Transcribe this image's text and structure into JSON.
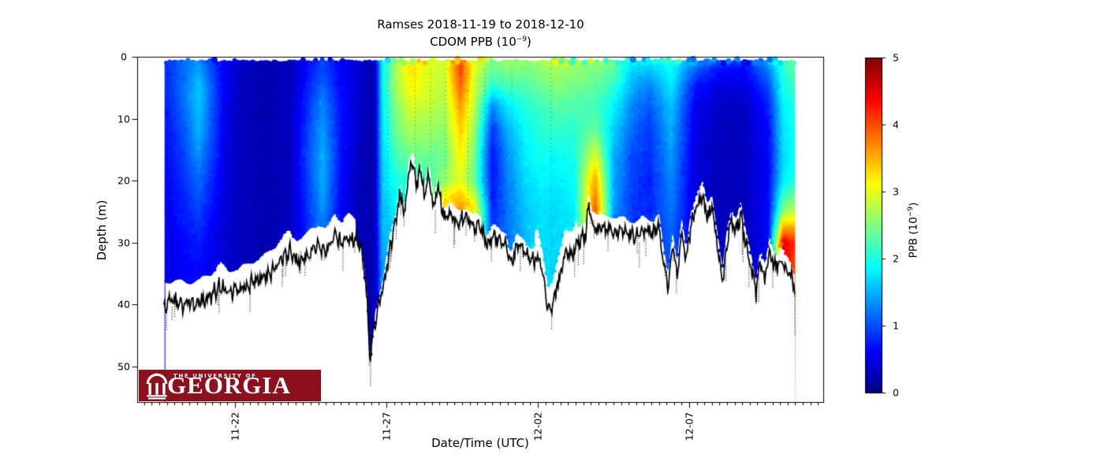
{
  "title": {
    "line1": "Ramses 2018-11-19 to 2018-12-10",
    "line2_prefix": "CDOM PPB (10",
    "line2_exponent": "−9",
    "line2_suffix": ")"
  },
  "axes": {
    "xlabel": "Date/Time (UTC)",
    "ylabel": "Depth (m)",
    "x_tick_labels": [
      {
        "day": 3,
        "label": "11-22"
      },
      {
        "day": 8,
        "label": "11-27"
      },
      {
        "day": 13,
        "label": "12-02"
      },
      {
        "day": 18,
        "label": "12-07"
      }
    ],
    "y_tick_labels": [
      {
        "m": 0,
        "label": "0"
      },
      {
        "m": 10,
        "label": "10"
      },
      {
        "m": 20,
        "label": "20"
      },
      {
        "m": 30,
        "label": "30"
      },
      {
        "m": 40,
        "label": "40"
      },
      {
        "m": 50,
        "label": "50"
      }
    ],
    "x_minor_tick_interval_days": 0.25
  },
  "colorbar": {
    "colormap": "jet",
    "vmin": 0,
    "vmax": 5,
    "ticks": [
      {
        "value": 0,
        "label": "0"
      },
      {
        "value": 1,
        "label": "1"
      },
      {
        "value": 2,
        "label": "2"
      },
      {
        "value": 3,
        "label": "3"
      },
      {
        "value": 4,
        "label": "4"
      },
      {
        "value": 5,
        "label": "5"
      }
    ],
    "label_prefix": "PPB (10",
    "label_exponent": "−9",
    "label_suffix": ")"
  },
  "logo": {
    "line1": "THE UNIVERSITY OF",
    "line2": "GEORGIA",
    "background": "#8C101E",
    "text_color": "#FFFFFF"
  },
  "chart_data": {
    "type": "heatmap",
    "title": "Ramses 2018-11-19 to 2018-12-10 — CDOM PPB (10⁻⁹)",
    "x_unit": "days since 2018-11-19 00:00 UTC",
    "y_unit": "depth (m)",
    "value_unit": "CDOM PPB (10⁻⁹)",
    "vmin": 0,
    "vmax": 5,
    "xlim_labels": [
      "11-19",
      "12-11"
    ],
    "ylim": [
      0,
      55.9
    ],
    "data_start_day": 0.7,
    "data_end_day": 21.5,
    "data_top_m": 0.75,
    "depth_rows_m": [
      0,
      2,
      5,
      8,
      12,
      16,
      20,
      25,
      30,
      35,
      40,
      45,
      50
    ],
    "time_cols_days": [
      0.8,
      1.3,
      1.8,
      2.3,
      2.7,
      3.2,
      4.0,
      4.8,
      5.5,
      5.9,
      6.5,
      7.1,
      7.45,
      7.62,
      7.85,
      8.3,
      8.8,
      9.3,
      9.9,
      10.45,
      10.9,
      11.5,
      12.0,
      12.6,
      13.1,
      13.6,
      14.2,
      14.9,
      15.5,
      16.1,
      16.7,
      17.4,
      18.2,
      19.0,
      19.8,
      20.6,
      21.1,
      21.45
    ],
    "values_ppb": [
      [
        0.9,
        0.9,
        0.85,
        0.8,
        0.75,
        0.7,
        0.65,
        0.6,
        0.55,
        0.5,
        0.5,
        0.5,
        0.5
      ],
      [
        1.1,
        1.15,
        1.2,
        1.15,
        1.05,
        0.95,
        0.85,
        0.75,
        0.65,
        0.6,
        0.6,
        0.6,
        0.6
      ],
      [
        1.3,
        1.45,
        1.6,
        1.6,
        1.5,
        1.35,
        1.15,
        0.95,
        0.75,
        0.65,
        0.6,
        0.6,
        0.6
      ],
      [
        0.85,
        0.9,
        1.0,
        1.0,
        0.95,
        0.85,
        0.75,
        0.65,
        0.55,
        0.5,
        0.5,
        0.5,
        0.5
      ],
      [
        0.55,
        0.55,
        0.55,
        0.5,
        0.5,
        0.45,
        0.45,
        0.4,
        0.4,
        0.4,
        0.4,
        0.4,
        0.4
      ],
      [
        0.35,
        0.35,
        0.3,
        0.3,
        0.3,
        0.3,
        0.3,
        0.3,
        0.3,
        0.3,
        0.3,
        0.3,
        0.3
      ],
      [
        0.25,
        0.25,
        0.25,
        0.25,
        0.25,
        0.25,
        0.25,
        0.25,
        0.25,
        0.25,
        0.25,
        0.25,
        0.25
      ],
      [
        0.3,
        0.3,
        0.3,
        0.3,
        0.3,
        0.3,
        0.3,
        0.3,
        0.3,
        0.3,
        0.3,
        0.3,
        0.3
      ],
      [
        0.7,
        0.75,
        0.85,
        0.95,
        1.05,
        1.1,
        1.05,
        0.95,
        0.85,
        0.7,
        0.6,
        0.6,
        0.6
      ],
      [
        0.9,
        1.0,
        1.15,
        1.3,
        1.4,
        1.5,
        1.5,
        1.35,
        1.05,
        0.8,
        0.7,
        0.7,
        0.7
      ],
      [
        0.6,
        0.6,
        0.65,
        0.7,
        0.7,
        0.7,
        0.65,
        0.6,
        0.55,
        0.5,
        0.5,
        0.5,
        0.5
      ],
      [
        0.4,
        0.4,
        0.4,
        0.38,
        0.35,
        0.32,
        0.3,
        0.3,
        0.3,
        0.3,
        0.3,
        0.3,
        0.3
      ],
      [
        0.25,
        0.25,
        0.25,
        0.25,
        0.25,
        0.25,
        0.25,
        0.25,
        0.25,
        0.25,
        0.25,
        0.25,
        0.25
      ],
      [
        0.3,
        0.3,
        0.3,
        0.3,
        0.3,
        0.3,
        0.3,
        0.3,
        0.3,
        0.3,
        0.3,
        0.3,
        0.3
      ],
      [
        1.7,
        1.8,
        1.8,
        1.75,
        1.7,
        1.65,
        1.6,
        1.55,
        1.45,
        1.35,
        1.3,
        1.3,
        1.3
      ],
      [
        2.6,
        2.7,
        2.65,
        2.55,
        2.4,
        2.2,
        2.0,
        1.8,
        1.7,
        1.6,
        1.6,
        1.6,
        1.6
      ],
      [
        3.2,
        3.3,
        3.15,
        2.95,
        2.7,
        2.4,
        2.1,
        1.9,
        1.8,
        1.7,
        1.7,
        1.7,
        1.7
      ],
      [
        2.9,
        3.0,
        2.95,
        2.85,
        2.65,
        2.4,
        2.15,
        1.95,
        1.85,
        1.8,
        1.8,
        1.8,
        1.8
      ],
      [
        2.8,
        2.85,
        2.8,
        2.7,
        2.55,
        2.4,
        2.6,
        3.6,
        3.4,
        3.2,
        3.2,
        3.2,
        3.2
      ],
      [
        3.9,
        4.1,
        3.9,
        3.6,
        3.35,
        3.2,
        3.0,
        3.8,
        3.6,
        3.4,
        3.4,
        3.4,
        3.4
      ],
      [
        3.0,
        3.0,
        2.9,
        2.8,
        2.6,
        2.45,
        2.4,
        3.3,
        3.1,
        3.0,
        3.0,
        3.0,
        3.0
      ],
      [
        2.5,
        2.4,
        2.0,
        1.3,
        0.85,
        0.7,
        0.7,
        0.8,
        0.9,
        0.9,
        0.9,
        0.9,
        0.9
      ],
      [
        2.6,
        2.5,
        2.2,
        1.8,
        1.5,
        1.35,
        1.25,
        1.2,
        1.2,
        1.2,
        1.2,
        1.2,
        1.2
      ],
      [
        2.6,
        2.45,
        2.25,
        2.05,
        1.9,
        1.8,
        1.7,
        1.6,
        1.55,
        1.5,
        1.5,
        1.5,
        1.5
      ],
      [
        2.7,
        2.6,
        2.4,
        2.2,
        2.05,
        1.95,
        1.85,
        1.75,
        1.7,
        1.7,
        1.7,
        1.7,
        1.7
      ],
      [
        2.8,
        2.7,
        2.5,
        2.3,
        2.1,
        1.9,
        1.8,
        1.7,
        1.7,
        1.7,
        1.7,
        1.7,
        1.7
      ],
      [
        2.7,
        2.6,
        2.45,
        2.25,
        2.1,
        2.0,
        1.9,
        1.8,
        1.75,
        1.7,
        1.7,
        1.7,
        1.7
      ],
      [
        2.6,
        2.5,
        2.35,
        2.2,
        2.4,
        3.0,
        3.6,
        4.0,
        3.2,
        2.6,
        2.6,
        2.6,
        2.6
      ],
      [
        2.5,
        2.35,
        2.1,
        1.85,
        1.65,
        1.5,
        1.45,
        1.4,
        1.4,
        1.4,
        1.4,
        1.4,
        1.4
      ],
      [
        1.8,
        1.7,
        1.5,
        1.3,
        1.15,
        1.0,
        0.95,
        0.9,
        0.9,
        0.9,
        0.9,
        0.9,
        0.9
      ],
      [
        1.9,
        1.6,
        1.25,
        1.05,
        0.9,
        0.85,
        0.8,
        0.8,
        0.8,
        0.8,
        0.8,
        0.8,
        0.8
      ],
      [
        2.0,
        1.9,
        1.8,
        1.6,
        1.5,
        1.4,
        1.3,
        1.2,
        1.1,
        1.0,
        1.0,
        1.0,
        1.0
      ],
      [
        1.7,
        1.1,
        0.7,
        0.55,
        0.5,
        0.45,
        0.45,
        0.45,
        0.45,
        0.45,
        0.45,
        0.45,
        0.45
      ],
      [
        1.2,
        0.7,
        0.45,
        0.35,
        0.3,
        0.3,
        0.3,
        0.3,
        0.3,
        0.3,
        0.3,
        0.3,
        0.3
      ],
      [
        1.0,
        0.65,
        0.45,
        0.35,
        0.3,
        0.3,
        0.3,
        0.3,
        0.3,
        0.3,
        0.3,
        0.3,
        0.3
      ],
      [
        1.5,
        1.25,
        0.95,
        0.75,
        0.65,
        0.6,
        0.6,
        0.6,
        0.6,
        0.6,
        0.6,
        0.6,
        0.6
      ],
      [
        2.2,
        2.1,
        1.95,
        1.85,
        1.75,
        1.7,
        1.8,
        2.6,
        4.5,
        4.3,
        4.3,
        4.3,
        4.3
      ],
      [
        2.4,
        2.3,
        2.15,
        2.0,
        1.95,
        1.9,
        2.0,
        2.8,
        4.2,
        4.0,
        4.0,
        4.0,
        4.0
      ]
    ],
    "bottom_line_m": [
      [
        0.65,
        40
      ],
      [
        1.0,
        39.5
      ],
      [
        1.4,
        40
      ],
      [
        1.8,
        39.5
      ],
      [
        2.2,
        38.5
      ],
      [
        2.5,
        36.8
      ],
      [
        2.8,
        38
      ],
      [
        3.2,
        37.5
      ],
      [
        3.6,
        36.5
      ],
      [
        4.0,
        35.5
      ],
      [
        4.3,
        34
      ],
      [
        4.6,
        32.5
      ],
      [
        4.8,
        31.5
      ],
      [
        5.05,
        33
      ],
      [
        5.3,
        32.5
      ],
      [
        5.55,
        31
      ],
      [
        5.75,
        30.5
      ],
      [
        6.0,
        31.5
      ],
      [
        6.3,
        28.5
      ],
      [
        6.5,
        30
      ],
      [
        6.75,
        29
      ],
      [
        7.0,
        29.5
      ],
      [
        7.2,
        31.5
      ],
      [
        7.35,
        38
      ],
      [
        7.45,
        49.5
      ],
      [
        7.55,
        45
      ],
      [
        7.7,
        41
      ],
      [
        7.9,
        37
      ],
      [
        8.1,
        31
      ],
      [
        8.3,
        27
      ],
      [
        8.45,
        22
      ],
      [
        8.6,
        25.5
      ],
      [
        8.75,
        18
      ],
      [
        8.9,
        17.5
      ],
      [
        9.0,
        21.5
      ],
      [
        9.1,
        18
      ],
      [
        9.25,
        22.5
      ],
      [
        9.4,
        19
      ],
      [
        9.55,
        24.5
      ],
      [
        9.7,
        21
      ],
      [
        9.9,
        26
      ],
      [
        10.1,
        25.5
      ],
      [
        10.35,
        26.5
      ],
      [
        10.6,
        26
      ],
      [
        10.85,
        27.5
      ],
      [
        11.1,
        27
      ],
      [
        11.3,
        30.5
      ],
      [
        11.5,
        29
      ],
      [
        11.75,
        29.5
      ],
      [
        11.95,
        30
      ],
      [
        12.1,
        33.5
      ],
      [
        12.3,
        30.5
      ],
      [
        12.55,
        31
      ],
      [
        12.8,
        33
      ],
      [
        13.0,
        32
      ],
      [
        13.15,
        35
      ],
      [
        13.35,
        41
      ],
      [
        13.5,
        40
      ],
      [
        13.7,
        36
      ],
      [
        13.9,
        31.5
      ],
      [
        14.1,
        32
      ],
      [
        14.35,
        30
      ],
      [
        14.6,
        28.5
      ],
      [
        14.68,
        23.5
      ],
      [
        14.8,
        27
      ],
      [
        15.0,
        28
      ],
      [
        15.3,
        27.5
      ],
      [
        15.6,
        28.5
      ],
      [
        15.9,
        28
      ],
      [
        16.2,
        29
      ],
      [
        16.5,
        28
      ],
      [
        16.8,
        28.5
      ],
      [
        17.0,
        27.5
      ],
      [
        17.15,
        33
      ],
      [
        17.3,
        37
      ],
      [
        17.45,
        30
      ],
      [
        17.6,
        35
      ],
      [
        17.75,
        28.5
      ],
      [
        17.9,
        33
      ],
      [
        18.05,
        27
      ],
      [
        18.25,
        24
      ],
      [
        18.45,
        22.5
      ],
      [
        18.6,
        26
      ],
      [
        18.75,
        24
      ],
      [
        18.95,
        31
      ],
      [
        19.1,
        36.5
      ],
      [
        19.25,
        30
      ],
      [
        19.4,
        26.5
      ],
      [
        19.55,
        28
      ],
      [
        19.7,
        25.5
      ],
      [
        19.85,
        30
      ],
      [
        20.05,
        34
      ],
      [
        20.2,
        38
      ],
      [
        20.35,
        33
      ],
      [
        20.5,
        36
      ],
      [
        20.65,
        31.5
      ],
      [
        20.85,
        34
      ],
      [
        21.05,
        32.5
      ],
      [
        21.2,
        34.5
      ],
      [
        21.35,
        35.5
      ],
      [
        21.5,
        37.5
      ]
    ],
    "bottom_gap_m": [
      [
        7.0,
        3.5
      ],
      [
        7.62,
        0.6
      ],
      [
        12.9,
        1.8
      ],
      [
        14.3,
        4.0
      ],
      [
        23,
        2.2
      ]
    ]
  }
}
